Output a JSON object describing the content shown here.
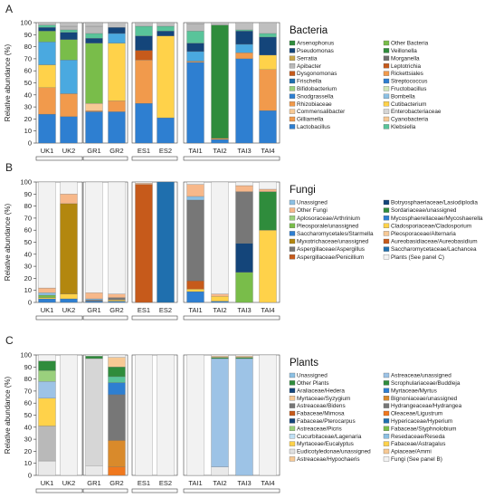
{
  "chart_data": [
    {
      "type": "bar",
      "panel_label": "A",
      "title": "Bacteria",
      "ylabel": "Relative abundance (%)",
      "ylim": [
        0,
        100
      ],
      "yticks": [
        0,
        10,
        20,
        30,
        40,
        50,
        60,
        70,
        80,
        90,
        100
      ],
      "groups": [
        {
          "name": "",
          "members": [
            "UK1",
            "UK2"
          ]
        },
        {
          "name": "",
          "members": [
            "GR1",
            "GR2"
          ]
        },
        {
          "name": "",
          "members": [
            "ES1",
            "ES2"
          ]
        },
        {
          "name": "",
          "members": [
            "TAI1",
            "TAI2",
            "TAI3",
            "TAI4"
          ]
        }
      ],
      "categories": [
        "UK1",
        "UK2",
        "GR1",
        "GR2",
        "ES1",
        "ES2",
        "TAI1",
        "TAI2",
        "TAI3",
        "TAI4"
      ],
      "series": [
        {
          "name": "Lactobacillus",
          "color": "#2e7fd1",
          "values": [
            24,
            22,
            26,
            26,
            33,
            21,
            67,
            3,
            70,
            27
          ]
        },
        {
          "name": "Gilliamella",
          "color": "#f19a4c",
          "values": [
            22,
            19,
            1,
            9,
            36,
            0,
            1,
            1,
            5,
            34
          ]
        },
        {
          "name": "Commensalibacter",
          "color": "#f7c995",
          "values": [
            0,
            0,
            6,
            0,
            0,
            0,
            0,
            0,
            0,
            0
          ]
        },
        {
          "name": "Snodgrassella",
          "color": "#ffd24a",
          "values": [
            19,
            0,
            0,
            48,
            0,
            68,
            0,
            0,
            0,
            12
          ]
        },
        {
          "name": "Bifidobacterium",
          "color": "#4aa9e0",
          "values": [
            19,
            28,
            0,
            8,
            0,
            0,
            8,
            0,
            7,
            0
          ]
        },
        {
          "name": "Frischella",
          "color": "#79bd4a",
          "values": [
            9,
            17,
            50,
            0,
            0,
            0,
            0,
            0,
            0,
            0
          ]
        },
        {
          "name": "Arsenophonus",
          "color": "#2f8c3c",
          "values": [
            0,
            0,
            0,
            0,
            0,
            0,
            0,
            94,
            0,
            0
          ]
        },
        {
          "name": "Apibacter",
          "color": "#c65a1b",
          "values": [
            0,
            0,
            0,
            0,
            8,
            0,
            0,
            0,
            0,
            0
          ]
        },
        {
          "name": "Other Bacteria",
          "color": "#14457a",
          "values": [
            3,
            6,
            4,
            5,
            12,
            4,
            7,
            0,
            11,
            15
          ]
        },
        {
          "name": "Klebsiella",
          "color": "#59c49a",
          "values": [
            2,
            2,
            4,
            0,
            8,
            4,
            10,
            0,
            1,
            3
          ]
        },
        {
          "name": "Enterobacteriaceae",
          "color": "#b9b9b9",
          "values": [
            0,
            3,
            6,
            0,
            0,
            0,
            6,
            0,
            0,
            0
          ]
        },
        {
          "name": "Rhizobiaceae",
          "color": "#bfbfbf",
          "values": [
            2,
            3,
            3,
            4,
            3,
            3,
            1,
            2,
            6,
            9
          ]
        }
      ],
      "legend": [
        [
          "Arsenophonus",
          "#2f8c3c"
        ],
        [
          "Other Bacteria",
          "#79bd4a"
        ],
        [
          "Pseudomonas",
          "#14457a"
        ],
        [
          "Veillonella",
          "#2f8c3c"
        ],
        [
          "Serratia",
          "#c9a64a"
        ],
        [
          "Morganella",
          "#6f6f6f"
        ],
        [
          "Apibacter",
          "#b9b9b9"
        ],
        [
          "Leptotrichia",
          "#c65a1b"
        ],
        [
          "Dysgonomonas",
          "#c65a1b"
        ],
        [
          "Rickettsiales",
          "#f19a4c"
        ],
        [
          "Frischella",
          "#1f6fae"
        ],
        [
          "Streptococcus",
          "#2e7fd1"
        ],
        [
          "Bifidobacterium",
          "#9ad07d"
        ],
        [
          "Fructobacillus",
          "#cfe6b6"
        ],
        [
          "Snodgrassella",
          "#2e7fd1"
        ],
        [
          "Bombella",
          "#8cc0e4"
        ],
        [
          "Rhizobiaceae",
          "#f19a4c"
        ],
        [
          "Cutibacterium",
          "#ffd24a"
        ],
        [
          "Commensalibacter",
          "#f7c995"
        ],
        [
          "Enterobacteriaceae",
          "#d6d6d6"
        ],
        [
          "Gilliamella",
          "#f19a4c"
        ],
        [
          "Cyanobacteria",
          "#f7c995"
        ],
        [
          "Lactobacillus",
          "#2e7fd1"
        ],
        [
          "Klebsiella",
          "#59c49a"
        ]
      ]
    },
    {
      "type": "bar",
      "panel_label": "B",
      "title": "Fungi",
      "ylabel": "Relative abundance (%)",
      "ylim": [
        0,
        100
      ],
      "yticks": [
        0,
        10,
        20,
        30,
        40,
        50,
        60,
        70,
        80,
        90,
        100
      ],
      "categories": [
        "UK1",
        "UK2",
        "GR1",
        "GR2",
        "ES1",
        "ES2",
        "TAI1",
        "TAI2",
        "TAI3",
        "TAI4"
      ],
      "series": [
        {
          "name": "Aspergillaceae/Penicillium",
          "color": "#2e7fd1",
          "values": [
            3,
            3,
            1,
            1,
            0,
            0,
            9,
            1,
            0,
            0
          ]
        },
        {
          "name": "Cladosporiaceae/Cladosporium",
          "color": "#ffd24a",
          "values": [
            1,
            4,
            0,
            1,
            0,
            0,
            2,
            4,
            0,
            60
          ]
        },
        {
          "name": "Myxotrichaceae/unassigned",
          "color": "#b3870f",
          "values": [
            0,
            75,
            0,
            0,
            0,
            0,
            0,
            0,
            0,
            0
          ]
        },
        {
          "name": "Aureobasidiaceae/Aureobasidium",
          "color": "#c65a1b",
          "values": [
            0,
            0,
            0,
            0,
            98,
            0,
            7,
            0,
            0,
            0
          ]
        },
        {
          "name": "Botryosphaeriaceae/Lasiodiplodia",
          "color": "#1f6fae",
          "values": [
            0,
            0,
            0,
            0,
            0,
            100,
            0,
            0,
            0,
            0
          ]
        },
        {
          "name": "Pleosporale/unassigned",
          "color": "#79bd4a",
          "values": [
            2,
            0,
            0,
            0,
            0,
            0,
            0,
            0,
            25,
            0
          ]
        },
        {
          "name": "Saccharomycetales/Starmella",
          "color": "#14457a",
          "values": [
            0,
            0,
            0,
            0,
            0,
            0,
            0,
            0,
            24,
            0
          ]
        },
        {
          "name": "Aspergillaceae/Aspergillus",
          "color": "#777777",
          "values": [
            0,
            0,
            1,
            2,
            0,
            0,
            67,
            0,
            43,
            0
          ]
        },
        {
          "name": "Sordariaceae/unassigned",
          "color": "#2f8c3c",
          "values": [
            0,
            0,
            0,
            0,
            0,
            0,
            0,
            0,
            0,
            32
          ]
        },
        {
          "name": "Unassigned",
          "color": "#8cc0e4",
          "values": [
            2,
            0,
            1,
            0,
            0,
            0,
            3,
            0,
            0,
            0
          ]
        },
        {
          "name": "Other Fungi",
          "color": "#f7b88a",
          "values": [
            4,
            8,
            5,
            3,
            1,
            0,
            10,
            2,
            5,
            2
          ]
        },
        {
          "name": "Plants (See panel C)",
          "color": "#f2f2f2",
          "values": [
            88,
            10,
            92,
            93,
            1,
            0,
            2,
            93,
            3,
            6
          ]
        }
      ],
      "legend": [
        [
          "Unassigned",
          "#8cc0e4"
        ],
        [
          "Botryosphaeriaceae/Lasiodiplodia",
          "#14457a"
        ],
        [
          "Other Fungi",
          "#f7b88a"
        ],
        [
          "Sordariaceae/unassigned",
          "#2f8c3c"
        ],
        [
          "Aplosoraceae/Arthrinium",
          "#9ad07d"
        ],
        [
          "Mycosphaerellaceae/Mycoshaerella",
          "#2e7fd1"
        ],
        [
          "Pleosporale/unassigned",
          "#79bd4a"
        ],
        [
          "Cladosporiaceae/Cladosporium",
          "#ffd24a"
        ],
        [
          "Saccharomycetales/Starmella",
          "#2e7fd1"
        ],
        [
          "Pleosporaceae/Alternaria",
          "#f7c995"
        ],
        [
          "Myxotrichaceae/unassigned",
          "#b3870f"
        ],
        [
          "Aureobasidiaceae/Aureobasidium",
          "#c65a1b"
        ],
        [
          "Aspergillaceae/Aspergillus",
          "#777777"
        ],
        [
          "Saccharomycetaceae/Lachancea",
          "#1f6fae"
        ],
        [
          "Aspergillaceae/Penicillium",
          "#c65a1b"
        ],
        [
          "Plants (See panel C)",
          "#f2f2f2"
        ]
      ]
    },
    {
      "type": "bar",
      "panel_label": "C",
      "title": "Plants",
      "ylabel": "Relative abundance (%)",
      "ylim": [
        0,
        100
      ],
      "yticks": [
        0,
        10,
        20,
        30,
        40,
        50,
        60,
        70,
        80,
        90,
        100
      ],
      "categories": [
        "UK1",
        "UK2",
        "GR1",
        "GR2",
        "ES1",
        "ES2",
        "TAI1",
        "TAI2",
        "TAI3",
        "TAI4"
      ],
      "series": [
        {
          "name": "Unassigned",
          "color": "#e9e9e9",
          "values": [
            12,
            0,
            8,
            0,
            0,
            0,
            0,
            7,
            0,
            0
          ]
        },
        {
          "name": "Astreaceae/Bidens",
          "color": "#b9b9b9",
          "values": [
            29,
            0,
            0,
            0,
            0,
            0,
            0,
            0,
            0,
            0
          ]
        },
        {
          "name": "Oleaceae/Ligustrum",
          "color": "#f0781e",
          "values": [
            0,
            0,
            0,
            7,
            0,
            0,
            0,
            0,
            0,
            0
          ]
        },
        {
          "name": "Bignoniaceae/unassigned",
          "color": "#d98a2b",
          "values": [
            0,
            0,
            0,
            22,
            0,
            0,
            0,
            0,
            0,
            0
          ]
        },
        {
          "name": "Myrtaceae/Syzygium",
          "color": "#ffd24a",
          "values": [
            23,
            0,
            0,
            0,
            0,
            0,
            0,
            0,
            0,
            0
          ]
        },
        {
          "name": "Hydrangeaceae/Hydrangea",
          "color": "#777777",
          "values": [
            0,
            0,
            0,
            38,
            0,
            0,
            0,
            0,
            0,
            0
          ]
        },
        {
          "name": "Fabaceae/Pterocarpus",
          "color": "#14457a",
          "values": [
            0,
            0,
            0,
            0,
            0,
            0,
            0,
            0,
            0,
            0
          ]
        },
        {
          "name": "Eudicotyledonae/unassigned",
          "color": "#d6d6d6",
          "values": [
            0,
            0,
            89,
            0,
            0,
            0,
            0,
            0,
            0,
            0
          ]
        },
        {
          "name": "Astreaceae/unassigned",
          "color": "#9dc3e6",
          "values": [
            14,
            0,
            0,
            0,
            0,
            0,
            0,
            90,
            97,
            0
          ]
        },
        {
          "name": "Araliaceae/Hedera",
          "color": "#2e7fd1",
          "values": [
            0,
            0,
            0,
            10,
            0,
            0,
            0,
            0,
            0,
            0
          ]
        },
        {
          "name": "Myrtaceae/Myrtus",
          "color": "#59c49a",
          "values": [
            0,
            0,
            0,
            5,
            0,
            0,
            0,
            0,
            0,
            0
          ]
        },
        {
          "name": "Cucurbitaceae/Lagenaria",
          "color": "#9ad07d",
          "values": [
            9,
            0,
            0,
            0,
            0,
            0,
            0,
            0,
            0,
            0
          ]
        },
        {
          "name": "Other Plants",
          "color": "#2f8c3c",
          "values": [
            8,
            0,
            2,
            8,
            0,
            0,
            0,
            1,
            1,
            0
          ]
        },
        {
          "name": "Astreaceae/Hypochaeris",
          "color": "#f7c995",
          "values": [
            0,
            0,
            0,
            8,
            0,
            0,
            0,
            1,
            1,
            0
          ]
        },
        {
          "name": "Fungi (See panel B)",
          "color": "#f2f2f2",
          "values": [
            5,
            100,
            1,
            2,
            100,
            100,
            100,
            1,
            1,
            100
          ]
        }
      ],
      "legend": [
        [
          "Unassigned",
          "#8cc0e4"
        ],
        [
          "Astreaceae/unassigned",
          "#9dc3e6"
        ],
        [
          "Other Plants",
          "#2f8c3c"
        ],
        [
          "Scrophulariaceae/Buddleja",
          "#2f8c3c"
        ],
        [
          "Araliaceae/Hedera",
          "#14457a"
        ],
        [
          "Myrtaceae/Myrtus",
          "#2e7fd1"
        ],
        [
          "Myrtaceae/Syzygium",
          "#f7c995"
        ],
        [
          "Bignoniaceae/unassigned",
          "#d98a2b"
        ],
        [
          "Astreaceae/Bidens",
          "#777777"
        ],
        [
          "Hydrangeaceae/Hydrangea",
          "#777777"
        ],
        [
          "Fabaceae/Mimosa",
          "#c65a1b"
        ],
        [
          "Oleaceae/Ligustrum",
          "#f0781e"
        ],
        [
          "Fabaceae/Pterocarpus",
          "#14457a"
        ],
        [
          "Hypericaceae/Hyperium",
          "#1f6fae"
        ],
        [
          "Astreaceae/Picris",
          "#9ad07d"
        ],
        [
          "Fabaceae/Styphnolobium",
          "#79bd4a"
        ],
        [
          "Cucurbitaceae/Lagenaria",
          "#bfe0f5"
        ],
        [
          "Resedaceae/Reseda",
          "#8cc0e4"
        ],
        [
          "Myrtaceae/Eucalyptus",
          "#ffd24a"
        ],
        [
          "Fabaceae/Astragalus",
          "#ffd24a"
        ],
        [
          "Eudicotyledonae/unassigned",
          "#e0e0e0"
        ],
        [
          "Apiaceae/Ammi",
          "#f7c995"
        ],
        [
          "Astreaceae/Hypochaeris",
          "#f7c995"
        ],
        [
          "Fungi (See panel B)",
          "#f2f2f2"
        ]
      ]
    }
  ]
}
